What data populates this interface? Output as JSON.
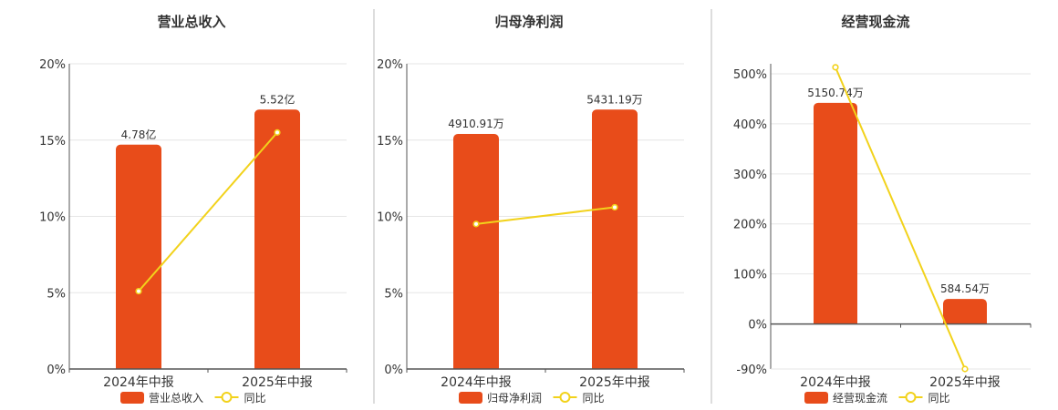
{
  "chart_data": [
    {
      "type": "bar",
      "title": "营业总收入",
      "categories": [
        "2024年中报",
        "2025年中报"
      ],
      "bar_series": {
        "name": "营业总收入",
        "values": [
          4.78,
          5.52
        ],
        "labels": [
          "4.78亿",
          "5.52亿"
        ]
      },
      "line_series": {
        "name": "同比",
        "values": [
          5.1,
          15.5
        ]
      },
      "y_ticks": [
        "0%",
        "5%",
        "10%",
        "15%",
        "20%"
      ],
      "ylim": [
        0,
        20
      ],
      "bar_heights_pct": [
        14.7,
        17.0
      ]
    },
    {
      "type": "bar",
      "title": "归母净利润",
      "categories": [
        "2024年中报",
        "2025年中报"
      ],
      "bar_series": {
        "name": "归母净利润",
        "values": [
          4910.91,
          5431.19
        ],
        "labels": [
          "4910.91万",
          "5431.19万"
        ]
      },
      "line_series": {
        "name": "同比",
        "values": [
          9.5,
          10.6
        ]
      },
      "y_ticks": [
        "0%",
        "5%",
        "10%",
        "15%",
        "20%"
      ],
      "ylim": [
        0,
        20
      ],
      "bar_heights_pct": [
        15.4,
        17.0
      ]
    },
    {
      "type": "bar",
      "title": "经营现金流",
      "categories": [
        "2024年中报",
        "2025年中报"
      ],
      "bar_series": {
        "name": "经营现金流",
        "values": [
          5150.74,
          584.54
        ],
        "labels": [
          "5150.74万",
          "584.54万"
        ]
      },
      "line_series": {
        "name": "同比",
        "values": [
          513,
          -90
        ]
      },
      "y_ticks": [
        "-90%",
        "0%",
        "100%",
        "200%",
        "300%",
        "400%",
        "500%"
      ],
      "y_tick_values": [
        -90,
        0,
        100,
        200,
        300,
        400,
        500
      ],
      "ylim": [
        -90,
        520
      ],
      "bar_heights_pct": [
        442,
        50
      ]
    }
  ],
  "colors": {
    "bar": "#E84C1A",
    "line": "#F2D21B",
    "grid": "#E6E6E6",
    "axis": "#555555",
    "divider": "#BBBBBB"
  }
}
